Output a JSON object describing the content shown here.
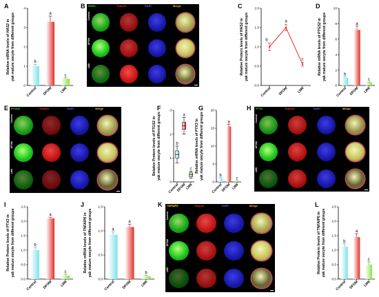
{
  "panels": {
    "A": "A",
    "B": "B",
    "C": "C",
    "D": "D",
    "E": "E",
    "F": "F",
    "G": "G",
    "H": "H",
    "I": "I",
    "J": "J",
    "K": "K",
    "L": "L"
  },
  "colors": {
    "control": "#7fe0ea",
    "dfom": "#e3302b",
    "lw6": "#8fe04a",
    "line": "#e3302b",
    "green_channel": "#1ec81e",
    "red_channel": "#d61414",
    "blue_channel": "#1a1ab8"
  },
  "image_grids": [
    {
      "id": "B",
      "headers": {
        "marker": "HAS2",
        "tubulin": "Tubulin",
        "dapi": "DAPI",
        "merge": "Merge"
      },
      "header_colors": {
        "marker": "#46e046",
        "tubulin": "#ff3030",
        "dapi": "#6a6aff",
        "merge": "#ffcc33"
      },
      "rows": [
        "Control",
        "DFOM",
        "LW6"
      ],
      "intensity": {
        "green": [
          0.85,
          1.0,
          0.55
        ],
        "red": [
          0.7,
          0.75,
          0.95
        ]
      }
    },
    {
      "id": "E",
      "headers": {
        "marker": "PTGS2",
        "tubulin": "Tubulin",
        "dapi": "DAPI",
        "merge": "Merge"
      },
      "header_colors": {
        "marker": "#46e046",
        "tubulin": "#ff3030",
        "dapi": "#6a6aff",
        "merge": "#ffcc33"
      },
      "rows": [
        "Control",
        "DFOM",
        "LW6"
      ],
      "intensity": {
        "green": [
          0.8,
          1.0,
          0.5
        ],
        "red": [
          0.55,
          0.9,
          0.5
        ]
      }
    },
    {
      "id": "H",
      "headers": {
        "marker": "PTX3",
        "tubulin": "Tubulin",
        "dapi": "DAPI",
        "merge": "Merge"
      },
      "header_colors": {
        "marker": "#46e046",
        "tubulin": "#ff3030",
        "dapi": "#6a6aff",
        "merge": "#ffcc33"
      },
      "rows": [
        "Control",
        "DFOM",
        "LW6"
      ],
      "intensity": {
        "green": [
          0.75,
          1.0,
          0.45
        ],
        "red": [
          0.8,
          0.85,
          0.8
        ]
      }
    },
    {
      "id": "K",
      "headers": {
        "marker": "TNFAIP6",
        "tubulin": "Tubulin",
        "dapi": "DAPI",
        "merge": "Merge"
      },
      "header_colors": {
        "marker": "#ffee33",
        "tubulin": "#ff3030",
        "dapi": "#6a6aff",
        "merge": "#ffcc33"
      },
      "rows": [
        "Control",
        "DFOM",
        "LW6"
      ],
      "intensity": {
        "green": [
          0.85,
          1.0,
          0.4
        ],
        "red": [
          0.9,
          0.8,
          0.7
        ]
      }
    }
  ],
  "chart_data": [
    {
      "id": "A",
      "type": "bar",
      "categories": [
        "Control",
        "DFOM",
        "LW6"
      ],
      "values": [
        1.0,
        3.3,
        0.35
      ],
      "errors": [
        0.1,
        0.3,
        0.05
      ],
      "letters": [
        "b",
        "a",
        "c"
      ],
      "ylabel_parts": [
        "Relative mRNA levels of ",
        "HAS2",
        " in",
        "yak mature oocyte from different groups"
      ],
      "yticks": [
        "0",
        "1",
        "2",
        "3",
        "4"
      ],
      "ylim": [
        0,
        4
      ]
    },
    {
      "id": "C",
      "type": "line",
      "categories": [
        "Control",
        "DFOM",
        "LW6"
      ],
      "values": [
        1.0,
        1.5,
        0.55
      ],
      "errors": [
        0.1,
        0.08,
        0.05
      ],
      "letters": [
        "b",
        "a",
        "c"
      ],
      "ylabel_parts": [
        "Relative Protern levels of HAS2 in",
        "yak mature oocyte from different groups"
      ],
      "yticks": [
        "0.0",
        "0.5",
        "1.0",
        "1.5",
        "2.0"
      ],
      "ylim": [
        0,
        2
      ]
    },
    {
      "id": "D",
      "type": "bar",
      "categories": [
        "Control",
        "DFOM",
        "LW6"
      ],
      "values": [
        1.0,
        7.2,
        0.4
      ],
      "errors": [
        0.1,
        0.5,
        0.05
      ],
      "letters": [
        "b",
        "a",
        "c"
      ],
      "ylabel_parts": [
        "Relative mRNA levels of ",
        "PTGS2",
        " in",
        "yak mature oocyte from different groups"
      ],
      "yticks": [
        "0",
        "2",
        "4",
        "6",
        "8",
        "10"
      ],
      "ylim": [
        0,
        10
      ]
    },
    {
      "id": "F",
      "type": "box",
      "categories": [
        "Control",
        "DFOM",
        "LW6"
      ],
      "boxes": [
        {
          "min": 0.8,
          "q1": 1.0,
          "median": 1.15,
          "q3": 1.3,
          "max": 1.5
        },
        {
          "min": 2.0,
          "q1": 2.2,
          "median": 2.35,
          "q3": 2.5,
          "max": 2.7
        },
        {
          "min": 0.15,
          "q1": 0.22,
          "median": 0.3,
          "q3": 0.38,
          "max": 0.45
        }
      ],
      "letters": [
        "b",
        "a",
        "c"
      ],
      "ylabel_parts": [
        "Relative Protern levels of PTGS2 in",
        "yak mature oocyte from different groups"
      ],
      "yticks": [
        "0",
        "1",
        "2",
        "3"
      ],
      "ylim": [
        0,
        3
      ]
    },
    {
      "id": "G",
      "type": "bar",
      "categories": [
        "Control",
        "DFOM",
        "LW6"
      ],
      "values": [
        1.0,
        15.5,
        0.2
      ],
      "errors": [
        0.2,
        0.6,
        0.05
      ],
      "letters": [
        "b",
        "a",
        "c"
      ],
      "ylabel_parts": [
        "Relative mRNA levels of ",
        "PTX3",
        " in",
        "yak mature oocyte from different groups"
      ],
      "yticks": [
        "0",
        "5",
        "10",
        "15",
        "20"
      ],
      "ylim": [
        0,
        20
      ]
    },
    {
      "id": "I",
      "type": "bar",
      "categories": [
        "Control",
        "DFOM",
        "LW6"
      ],
      "values": [
        1.0,
        2.1,
        0.12
      ],
      "errors": [
        0.1,
        0.04,
        0.05
      ],
      "letters": [
        "b",
        "a",
        "c"
      ],
      "ylabel_parts": [
        "Relative Protern levels of PTX3 in",
        "yak mature oocyte from different groups"
      ],
      "yticks": [
        "0.0",
        "0.5",
        "1.0",
        "1.5",
        "2.0",
        "2.5"
      ],
      "ylim": [
        0,
        2.5
      ]
    },
    {
      "id": "J",
      "type": "bar",
      "categories": [
        "Control",
        "DFOM",
        "LW6"
      ],
      "values": [
        0.92,
        1.08,
        0.06
      ],
      "errors": [
        0.06,
        0.06,
        0.02
      ],
      "letters": [
        "a",
        "a",
        "b"
      ],
      "ylabel_parts": [
        "Relative mRNA levels of ",
        "TNFAIP6",
        " in",
        "yak mature oocyte from different groups"
      ],
      "yticks": [
        "0.0",
        "0.5",
        "1.0",
        "1.5"
      ],
      "ylim": [
        0,
        1.5
      ]
    },
    {
      "id": "L",
      "type": "bar",
      "categories": [
        "Control",
        "DFOM",
        "LW6"
      ],
      "values": [
        1.12,
        1.45,
        0.5
      ],
      "errors": [
        0.1,
        0.12,
        0.1
      ],
      "letters": [
        "b",
        "a",
        "c"
      ],
      "ylabel_parts": [
        "Relative Protern levels of TNFAIP6 in",
        "yak mature oocyte from different groups"
      ],
      "yticks": [
        "0.0",
        "0.5",
        "1.0",
        "1.5",
        "2.0",
        "2.5"
      ],
      "ylim": [
        0,
        2.5
      ]
    }
  ]
}
